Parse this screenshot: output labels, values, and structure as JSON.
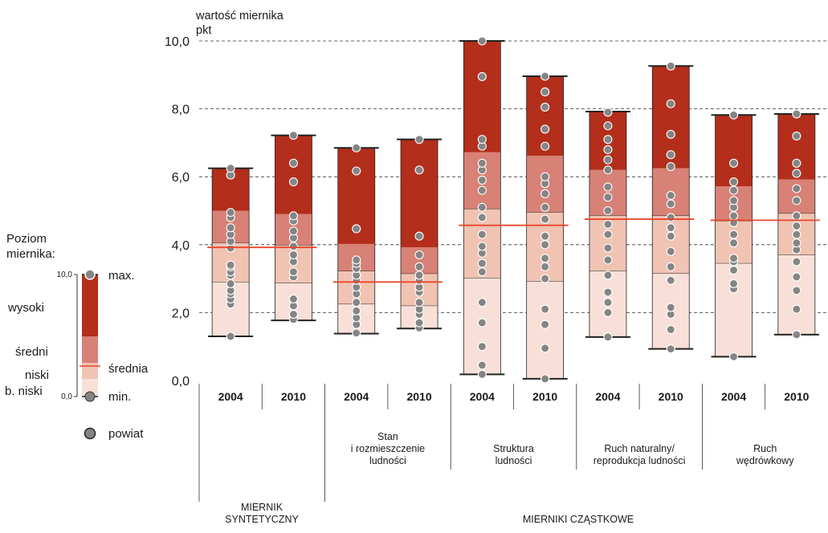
{
  "chart_data": {
    "type": "range-bar",
    "ylabel_line1": "wartość miernika",
    "ylabel_line2": "pkt",
    "ylim": [
      0,
      10
    ],
    "yticks": [
      {
        "value": 0,
        "label": "0,0"
      },
      {
        "value": 2,
        "label": "2,0"
      },
      {
        "value": 4,
        "label": "4,0"
      },
      {
        "value": 6,
        "label": "6,0"
      },
      {
        "value": 8,
        "label": "8,0"
      },
      {
        "value": 10,
        "label": "10,0"
      }
    ],
    "grid": true,
    "bars": [
      {
        "group": 0,
        "year": "2004",
        "min": 1.3,
        "low": 2.9,
        "mid": 5.0,
        "high": 6.25,
        "max": 6.25,
        "mean": 3.92,
        "points": [
          1.3,
          2.25,
          2.4,
          2.55,
          2.65,
          2.85,
          3.1,
          3.2,
          3.35,
          3.4,
          3.9,
          4.1,
          4.3,
          4.5,
          4.8,
          4.95,
          6.05,
          6.25
        ]
      },
      {
        "group": 0,
        "year": "2010",
        "min": 1.77,
        "low": 2.87,
        "mid": 4.9,
        "high": 7.22,
        "max": 7.22,
        "mean": 3.92,
        "points": [
          1.8,
          1.95,
          2.2,
          2.4,
          3.05,
          3.2,
          3.5,
          3.7,
          3.95,
          4.2,
          4.4,
          4.7,
          4.85,
          5.85,
          6.4,
          7.22
        ]
      },
      {
        "group": 1,
        "year": "2004",
        "min": 1.38,
        "low": 2.25,
        "mid": 4.02,
        "high": 6.85,
        "max": 6.85,
        "mean": 2.9,
        "points": [
          1.4,
          1.65,
          1.85,
          2.05,
          2.3,
          2.55,
          2.75,
          2.95,
          3.1,
          3.3,
          3.45,
          3.55,
          4.47,
          6.17,
          6.85
        ]
      },
      {
        "group": 1,
        "year": "2010",
        "min": 1.53,
        "low": 2.2,
        "mid": 3.92,
        "high": 7.1,
        "max": 7.1,
        "mean": 2.9,
        "points": [
          1.55,
          1.7,
          1.95,
          2.1,
          2.3,
          2.6,
          2.75,
          2.95,
          3.1,
          3.35,
          3.7,
          4.25,
          6.2,
          7.1
        ]
      },
      {
        "group": 2,
        "year": "2004",
        "min": 0.18,
        "low": 3.02,
        "mid": 6.72,
        "high": 10.0,
        "max": 10.0,
        "mean": 4.57,
        "points": [
          0.18,
          0.45,
          1.0,
          1.7,
          2.3,
          3.2,
          3.45,
          3.75,
          3.95,
          4.3,
          4.8,
          5.1,
          5.6,
          5.9,
          6.2,
          6.4,
          6.9,
          7.1,
          8.95,
          10.0
        ]
      },
      {
        "group": 2,
        "year": "2010",
        "min": 0.05,
        "low": 2.92,
        "mid": 6.62,
        "high": 8.96,
        "max": 8.96,
        "mean": 4.57,
        "points": [
          0.05,
          0.95,
          1.65,
          2.1,
          3.0,
          3.35,
          3.6,
          4.0,
          4.25,
          4.75,
          5.1,
          5.5,
          5.8,
          6.0,
          6.9,
          7.4,
          8.05,
          8.5,
          8.96
        ]
      },
      {
        "group": 3,
        "year": "2004",
        "min": 1.28,
        "low": 3.22,
        "mid": 6.2,
        "high": 7.92,
        "max": 7.92,
        "mean": 4.75,
        "points": [
          1.28,
          2.0,
          2.3,
          2.6,
          3.1,
          3.55,
          3.9,
          4.3,
          4.6,
          5.0,
          5.4,
          5.7,
          6.2,
          6.5,
          6.8,
          7.1,
          7.5,
          7.9
        ]
      },
      {
        "group": 3,
        "year": "2010",
        "min": 0.93,
        "low": 3.15,
        "mid": 6.25,
        "high": 9.26,
        "max": 9.26,
        "mean": 4.75,
        "points": [
          0.93,
          1.5,
          1.95,
          2.15,
          2.95,
          3.35,
          3.8,
          4.25,
          4.5,
          4.8,
          5.2,
          5.45,
          6.3,
          6.65,
          7.25,
          8.15,
          9.26
        ]
      },
      {
        "group": 4,
        "year": "2004",
        "min": 0.7,
        "low": 3.45,
        "mid": 5.72,
        "high": 7.82,
        "max": 7.82,
        "mean": 4.72,
        "points": [
          0.7,
          2.7,
          2.85,
          3.25,
          3.5,
          3.6,
          4.05,
          4.3,
          4.65,
          4.85,
          5.1,
          5.3,
          5.6,
          5.85,
          6.4,
          7.82
        ]
      },
      {
        "group": 4,
        "year": "2010",
        "min": 1.35,
        "low": 3.7,
        "mid": 5.92,
        "high": 7.85,
        "max": 7.85,
        "mean": 4.72,
        "points": [
          1.35,
          2.1,
          2.65,
          3.05,
          3.5,
          3.85,
          4.05,
          4.3,
          4.55,
          4.85,
          5.3,
          5.65,
          6.1,
          6.4,
          7.2,
          7.85
        ]
      }
    ],
    "groups": [
      {
        "lines": []
      },
      {
        "lines": [
          "Stan",
          "i rozmieszczenie",
          "ludności"
        ]
      },
      {
        "lines": [
          "Struktura",
          "ludności"
        ]
      },
      {
        "lines": [
          "Ruch naturalny/",
          "reprodukcja ludności"
        ]
      },
      {
        "lines": [
          "Ruch",
          "wędrówkowy"
        ]
      }
    ],
    "category_labels": {
      "synthetic": [
        "MIERNIK",
        "SYNTETYCZNY"
      ],
      "partial": "MIERNIKI CZĄSTKOWE"
    },
    "colors": {
      "bardzo_niski": "#f8e0d8",
      "niski": "#f0c3b3",
      "sredni": "#d88176",
      "wysoki": "#b32e1b",
      "mean_line": "#e8472a",
      "point_fill": "#858585",
      "point_stroke": "#ffffff"
    }
  },
  "legend": {
    "title_line1": "Poziom",
    "title_line2": "miernika:",
    "scale_top": "10,0",
    "scale_bottom": "0,0",
    "level_high": "wysoki",
    "level_mid": "średni",
    "level_low": "niski",
    "level_very_low": "b. niski",
    "max_label": "max.",
    "mean_label": "średnia",
    "min_label": "min.",
    "point_label": "powiat"
  }
}
